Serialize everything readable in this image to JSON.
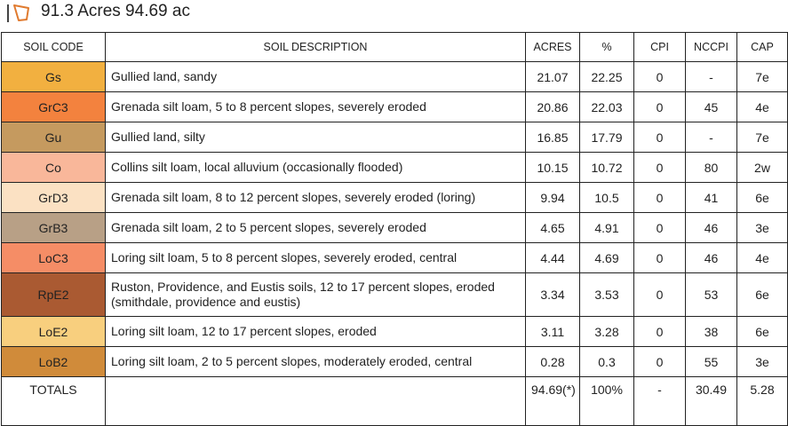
{
  "header": {
    "icon": "boundary-polygon-icon",
    "title": "91.3 Acres 94.69 ac"
  },
  "table": {
    "columns": [
      "SOIL CODE",
      "SOIL DESCRIPTION",
      "ACRES",
      "%",
      "CPI",
      "NCCPI",
      "CAP"
    ],
    "rows": [
      {
        "code": "Gs",
        "color": "#f2b040",
        "desc": "Gullied land, sandy",
        "acres": "21.07",
        "pct": "22.25",
        "cpi": "0",
        "nccpi": "-",
        "cap": "7e"
      },
      {
        "code": "GrC3",
        "color": "#f3823e",
        "desc": "Grenada silt loam, 5 to 8 percent slopes, severely eroded",
        "acres": "20.86",
        "pct": "22.03",
        "cpi": "0",
        "nccpi": "45",
        "cap": "4e"
      },
      {
        "code": "Gu",
        "color": "#c59a5f",
        "desc": "Gullied land, silty",
        "acres": "16.85",
        "pct": "17.79",
        "cpi": "0",
        "nccpi": "-",
        "cap": "7e"
      },
      {
        "code": "Co",
        "color": "#f9b79a",
        "desc": "Collins silt loam, local alluvium (occasionally flooded)",
        "acres": "10.15",
        "pct": "10.72",
        "cpi": "0",
        "nccpi": "80",
        "cap": "2w"
      },
      {
        "code": "GrD3",
        "color": "#fbe1c3",
        "desc": "Grenada silt loam, 8 to 12 percent slopes, severely eroded (loring)",
        "acres": "9.94",
        "pct": "10.5",
        "cpi": "0",
        "nccpi": "41",
        "cap": "6e"
      },
      {
        "code": "GrB3",
        "color": "#b8a086",
        "desc": "Grenada silt loam, 2 to 5 percent slopes, severely eroded",
        "acres": "4.65",
        "pct": "4.91",
        "cpi": "0",
        "nccpi": "46",
        "cap": "3e"
      },
      {
        "code": "LoC3",
        "color": "#f58d66",
        "desc": "Loring silt loam, 5 to 8 percent slopes, severely eroded, central",
        "acres": "4.44",
        "pct": "4.69",
        "cpi": "0",
        "nccpi": "46",
        "cap": "4e"
      },
      {
        "code": "RpE2",
        "color": "#aa5a32",
        "desc": "Ruston, Providence, and Eustis soils, 12 to 17 percent slopes, eroded (smithdale, providence and eustis)",
        "acres": "3.34",
        "pct": "3.53",
        "cpi": "0",
        "nccpi": "53",
        "cap": "6e"
      },
      {
        "code": "LoE2",
        "color": "#f8cf7e",
        "desc": "Loring silt loam, 12 to 17 percent slopes, eroded",
        "acres": "3.11",
        "pct": "3.28",
        "cpi": "0",
        "nccpi": "38",
        "cap": "6e"
      },
      {
        "code": "LoB2",
        "color": "#d08b3a",
        "desc": "Loring silt loam, 2 to 5 percent slopes, moderately eroded, central",
        "acres": "0.28",
        "pct": "0.3",
        "cpi": "0",
        "nccpi": "55",
        "cap": "3e"
      }
    ],
    "totals": {
      "label": "TOTALS",
      "desc": "",
      "acres": "94.69(*)",
      "pct": "100%",
      "cpi": "-",
      "nccpi": "30.49",
      "cap": "5.28"
    }
  }
}
